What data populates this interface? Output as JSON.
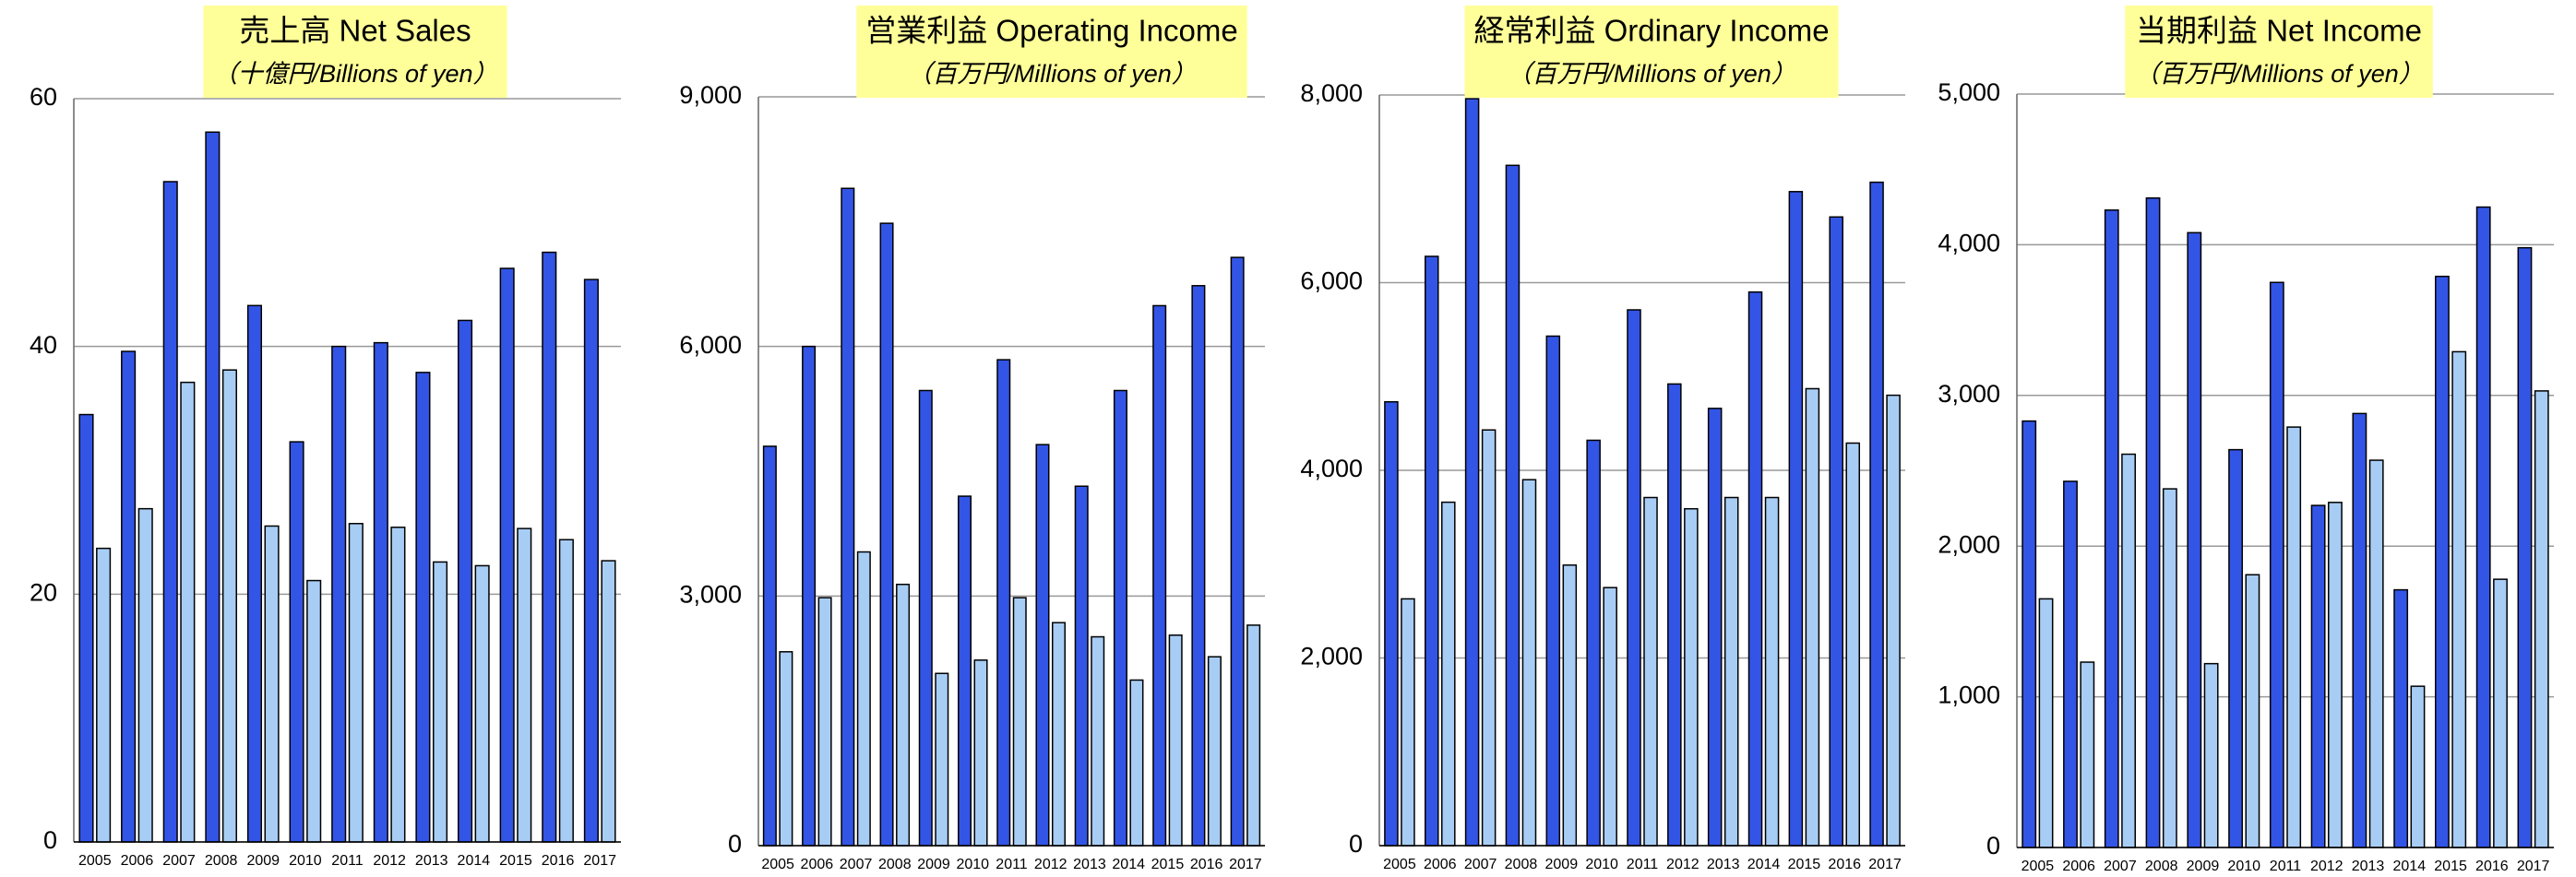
{
  "chart_data": [
    {
      "type": "bar",
      "title": "売上高 Net Sales",
      "subtitle": "（十億円/Billions of yen）",
      "categories": [
        "2005",
        "2006",
        "2007",
        "2008",
        "2009",
        "2010",
        "2011",
        "2012",
        "2013",
        "2014",
        "2015",
        "2016",
        "2017"
      ],
      "series": [
        {
          "color": "#3355e6",
          "values": [
            34.5,
            39.6,
            53.3,
            57.3,
            43.3,
            32.3,
            40.0,
            40.3,
            37.9,
            42.1,
            46.3,
            47.6,
            45.4
          ]
        },
        {
          "color": "#a8cdf5",
          "values": [
            23.7,
            26.9,
            37.1,
            38.1,
            25.5,
            21.1,
            25.7,
            25.4,
            22.6,
            22.3,
            25.3,
            24.4,
            22.7
          ]
        }
      ],
      "ylim": [
        0,
        60
      ],
      "yticks": [
        0,
        20,
        40,
        60
      ],
      "grid": true
    },
    {
      "type": "bar",
      "title": "営業利益 Operating Income",
      "subtitle": "（百万円/Millions of yen）",
      "categories": [
        "2005",
        "2006",
        "2007",
        "2008",
        "2009",
        "2010",
        "2011",
        "2012",
        "2013",
        "2014",
        "2015",
        "2016",
        "2017"
      ],
      "series": [
        {
          "color": "#3355e6",
          "values": [
            4800,
            6000,
            7900,
            7480,
            5470,
            4200,
            5840,
            4820,
            4320,
            5470,
            6490,
            6730,
            7070
          ]
        },
        {
          "color": "#a8cdf5",
          "values": [
            2330,
            2980,
            3530,
            3140,
            2070,
            2230,
            2980,
            2680,
            2510,
            1990,
            2530,
            2270,
            2650
          ]
        }
      ],
      "ylim": [
        0,
        9000
      ],
      "yticks": [
        0,
        {
          "value": 3000,
          "label": "3,000"
        },
        {
          "value": 6000,
          "label": "6,000"
        },
        {
          "value": 9000,
          "label": "9,000"
        }
      ],
      "grid": true
    },
    {
      "type": "bar",
      "title": "経常利益 Ordinary Income",
      "subtitle": "（百万円/Millions of yen）",
      "categories": [
        "2005",
        "2006",
        "2007",
        "2008",
        "2009",
        "2010",
        "2011",
        "2012",
        "2013",
        "2014",
        "2015",
        "2016",
        "2017"
      ],
      "series": [
        {
          "color": "#3355e6",
          "values": [
            4730,
            6280,
            7960,
            7250,
            5430,
            4320,
            5710,
            4920,
            4660,
            5900,
            6970,
            6700,
            7070
          ]
        },
        {
          "color": "#a8cdf5",
          "values": [
            2630,
            3660,
            4430,
            3900,
            2990,
            2750,
            3710,
            3590,
            3710,
            3710,
            4870,
            4290,
            4800
          ]
        }
      ],
      "ylim": [
        0,
        8000
      ],
      "yticks": [
        0,
        {
          "value": 2000,
          "label": "2,000"
        },
        {
          "value": 4000,
          "label": "4,000"
        },
        {
          "value": 6000,
          "label": "6,000"
        },
        {
          "value": 8000,
          "label": "8,000"
        }
      ],
      "grid": true
    },
    {
      "type": "bar",
      "title": "当期利益 Net Income",
      "subtitle": "（百万円/Millions of yen）",
      "categories": [
        "2005",
        "2006",
        "2007",
        "2008",
        "2009",
        "2010",
        "2011",
        "2012",
        "2013",
        "2014",
        "2015",
        "2016",
        "2017"
      ],
      "series": [
        {
          "color": "#3355e6",
          "values": [
            2830,
            2430,
            4230,
            4310,
            4080,
            2640,
            3750,
            2270,
            2880,
            1710,
            3790,
            4250,
            3980
          ]
        },
        {
          "color": "#a8cdf5",
          "values": [
            1650,
            1230,
            2610,
            2380,
            1220,
            1810,
            2790,
            2290,
            2570,
            1070,
            3290,
            1780,
            3030
          ]
        }
      ],
      "ylim": [
        0,
        5000
      ],
      "yticks": [
        0,
        {
          "value": 1000,
          "label": "1,000"
        },
        {
          "value": 2000,
          "label": "2,000"
        },
        {
          "value": 3000,
          "label": "3,000"
        },
        {
          "value": 4000,
          "label": "4,000"
        },
        {
          "value": 5000,
          "label": "5,000"
        }
      ],
      "grid": true
    }
  ]
}
